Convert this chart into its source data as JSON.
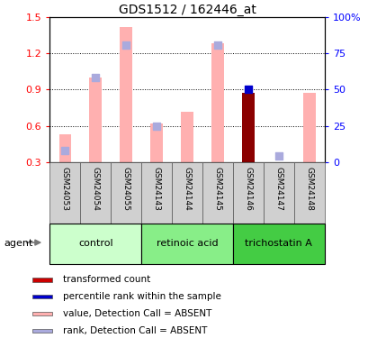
{
  "title": "GDS1512 / 162446_at",
  "samples": [
    "GSM24053",
    "GSM24054",
    "GSM24055",
    "GSM24143",
    "GSM24144",
    "GSM24145",
    "GSM24146",
    "GSM24147",
    "GSM24148"
  ],
  "group_colors": [
    "#b8f0b8",
    "#77dd77",
    "#44cc44"
  ],
  "group_names": [
    "control",
    "retinoic acid",
    "trichostatin A"
  ],
  "group_starts": [
    0,
    3,
    6
  ],
  "group_ends": [
    2,
    5,
    8
  ],
  "bar_values": [
    0.53,
    1.0,
    1.42,
    0.62,
    0.72,
    1.28,
    0.87,
    0.295,
    0.875
  ],
  "rank_values": [
    0.4,
    1.0,
    1.27,
    0.6,
    null,
    1.27,
    0.9,
    0.35,
    null
  ],
  "absent_flags": [
    true,
    true,
    true,
    true,
    true,
    true,
    false,
    true,
    true
  ],
  "bar_color_absent": "#ffb0b0",
  "bar_color_present": "#8b0000",
  "rank_dot_absent": "#aaaadd",
  "rank_dot_present": "#0000cc",
  "ylim_left": [
    0.3,
    1.5
  ],
  "ylim_right": [
    0,
    100
  ],
  "yticks_left": [
    0.3,
    0.6,
    0.9,
    1.2,
    1.5
  ],
  "yticks_right": [
    0,
    25,
    50,
    75,
    100
  ],
  "ytick_labels_right": [
    "0",
    "25",
    "50",
    "75",
    "100%"
  ],
  "agent_label": "agent",
  "legend": [
    {
      "label": "transformed count",
      "color": "#cc0000"
    },
    {
      "label": "percentile rank within the sample",
      "color": "#0000cc"
    },
    {
      "label": "value, Detection Call = ABSENT",
      "color": "#ffb0b0"
    },
    {
      "label": "rank, Detection Call = ABSENT",
      "color": "#aaaadd"
    }
  ],
  "bar_width": 0.4,
  "dot_size": 30
}
